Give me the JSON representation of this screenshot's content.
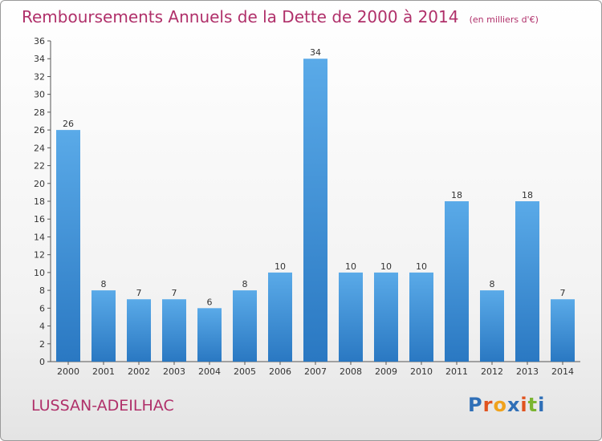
{
  "chart_data": {
    "type": "bar",
    "title": "Remboursements Annuels de la Dette de 2000 à 2014",
    "subtitle": "(en milliers d'€)",
    "categories": [
      "2000",
      "2001",
      "2002",
      "2003",
      "2004",
      "2005",
      "2006",
      "2007",
      "2008",
      "2009",
      "2010",
      "2011",
      "2012",
      "2013",
      "2014"
    ],
    "values": [
      26,
      8,
      7,
      7,
      6,
      8,
      10,
      34,
      10,
      10,
      10,
      18,
      8,
      18,
      7
    ],
    "ylim": [
      0,
      36
    ],
    "ytick_step": 2,
    "grid": false,
    "bar_color": "#3d8fd6"
  },
  "commune": "LUSSAN-ADEILHAC",
  "logo": {
    "text": "Proxiti",
    "letters": [
      "P",
      "r",
      "o",
      "x",
      "i",
      "t",
      "i"
    ]
  }
}
